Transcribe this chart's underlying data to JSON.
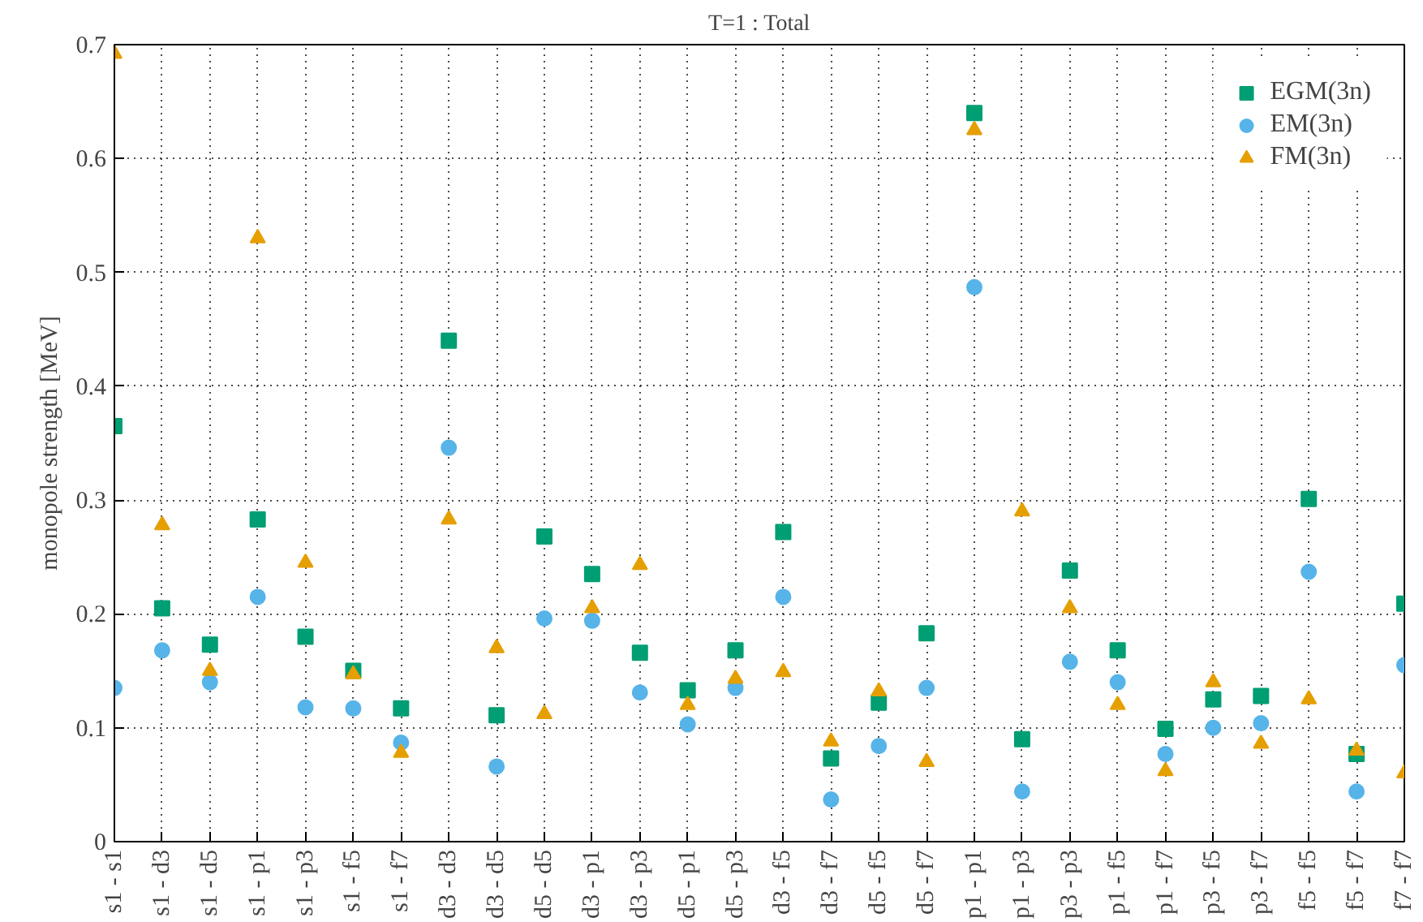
{
  "chart_data": {
    "type": "scatter",
    "title": "T=1 : Total",
    "ylabel": "monopole strength [MeV]",
    "categories": [
      "s1 - s1",
      "s1 - d3",
      "s1 - d5",
      "s1 - p1",
      "s1 - p3",
      "s1 - f5",
      "s1 - f7",
      "d3 - d3",
      "d3 - d5",
      "d5 - d5",
      "d3 - p1",
      "d3 - p3",
      "d5 - p1",
      "d5 - p3",
      "d3 - f5",
      "d3 - f7",
      "d5 - f5",
      "d5 - f7",
      "p1 - p1",
      "p1 - p3",
      "p3 - p3",
      "p1 - f5",
      "p1 - f7",
      "p3 - f5",
      "p3 - f7",
      "f5 - f5",
      "f5 - f7",
      "f7 - f7"
    ],
    "series": [
      {
        "name": "EGM(3n)",
        "color": "#009e73",
        "marker": "square",
        "values": [
          0.365,
          0.205,
          0.173,
          0.283,
          0.18,
          0.15,
          0.117,
          0.44,
          0.111,
          0.268,
          0.235,
          0.166,
          0.133,
          0.168,
          0.272,
          0.073,
          0.122,
          0.183,
          0.64,
          0.09,
          0.238,
          0.168,
          0.099,
          0.125,
          0.128,
          0.301,
          0.077,
          0.209
        ]
      },
      {
        "name": "EM(3n)",
        "color": "#56b4e9",
        "marker": "circle",
        "values": [
          0.135,
          0.168,
          0.14,
          0.215,
          0.118,
          0.117,
          0.087,
          0.346,
          0.066,
          0.196,
          0.194,
          0.131,
          0.103,
          0.135,
          0.215,
          0.037,
          0.084,
          0.135,
          0.487,
          0.044,
          0.158,
          0.14,
          0.077,
          0.1,
          0.104,
          0.237,
          0.044,
          0.155
        ]
      },
      {
        "name": "FM(3n)",
        "color": "#e69f00",
        "marker": "triangle",
        "values": [
          0.692,
          0.278,
          0.15,
          0.53,
          0.245,
          0.147,
          0.078,
          0.283,
          0.17,
          0.112,
          0.205,
          0.243,
          0.12,
          0.143,
          0.149,
          0.088,
          0.132,
          0.07,
          0.625,
          0.29,
          0.205,
          0.12,
          0.062,
          0.14,
          0.086,
          0.125,
          0.08,
          0.06
        ]
      }
    ],
    "ylim": [
      0,
      0.7
    ],
    "yticks": [
      0,
      0.1,
      0.2,
      0.3,
      0.4,
      0.5,
      0.6,
      0.7
    ],
    "grid": true,
    "legend": "top right"
  }
}
